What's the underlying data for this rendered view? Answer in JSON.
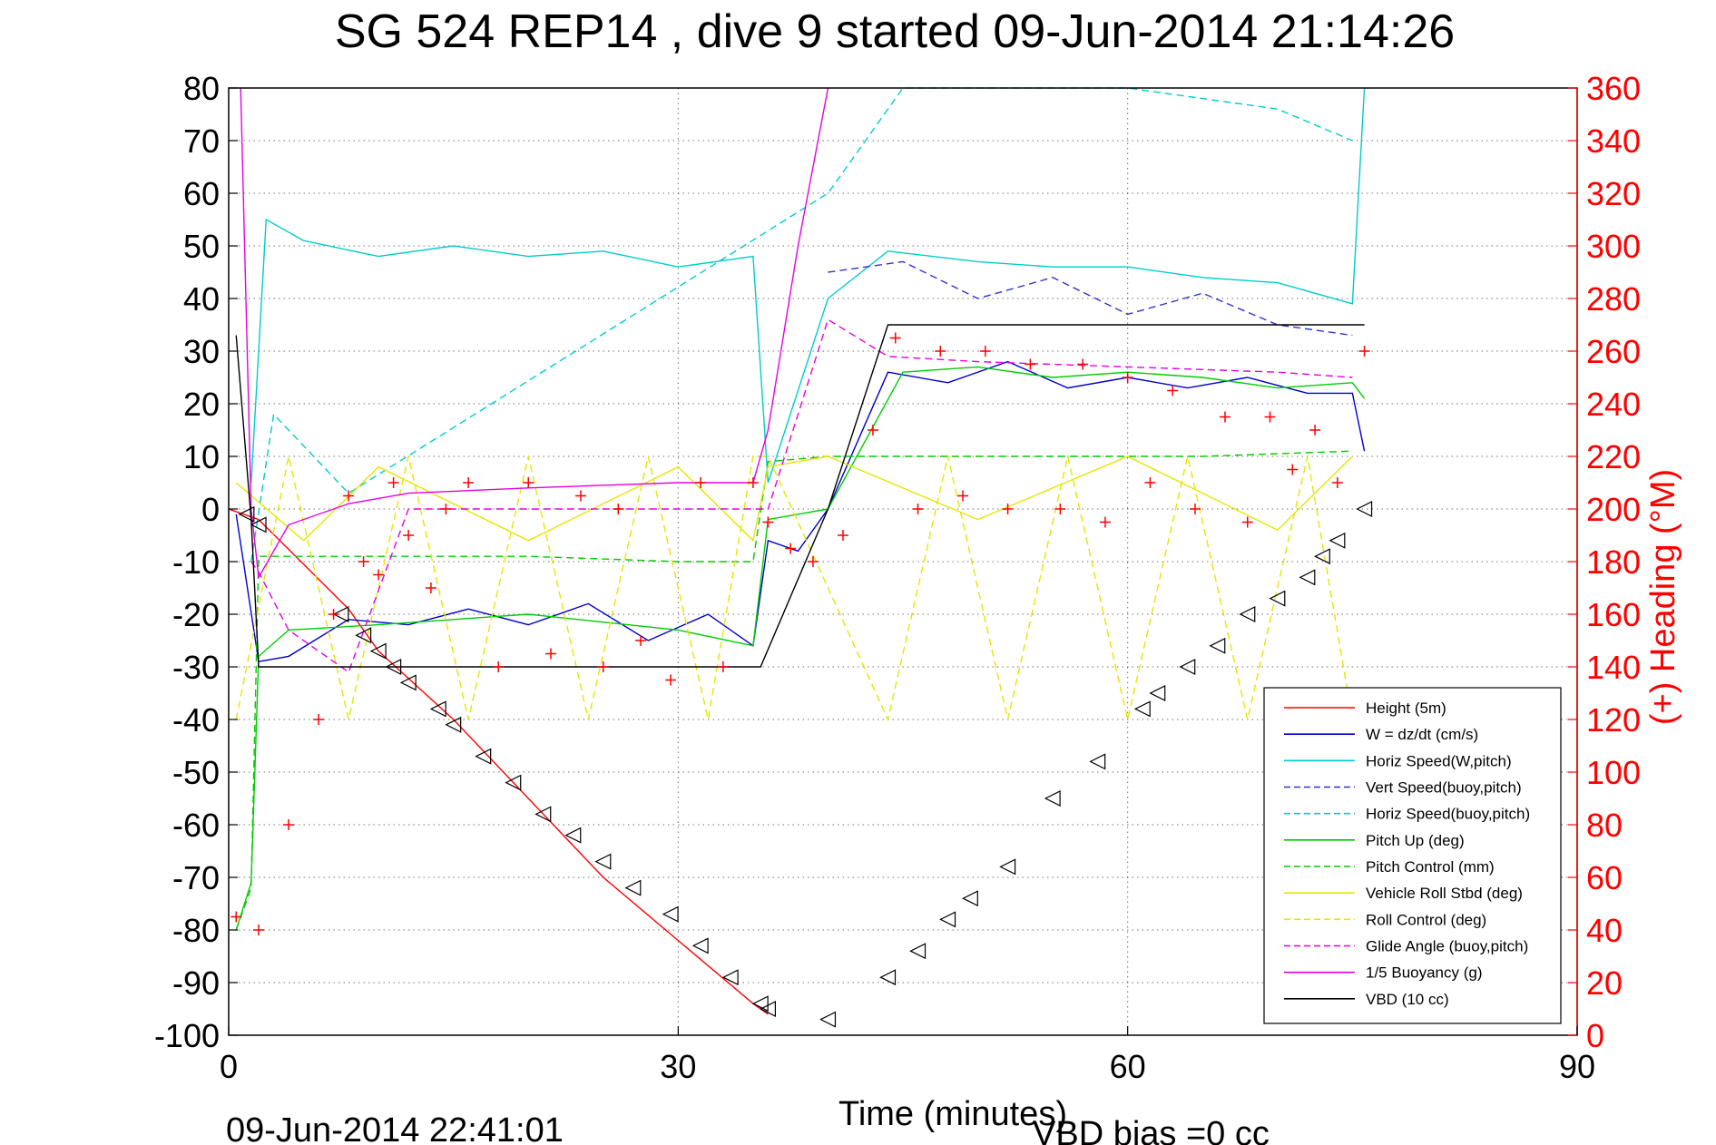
{
  "chart_data": {
    "type": "line",
    "title": "SG 524   REP14  , dive 9 started 09-Jun-2014 21:14:26",
    "xlabel": "Time (minutes)",
    "ylabel_right": "(+) Heading (°M)",
    "xlim": [
      0,
      90
    ],
    "ylim": [
      -100,
      80
    ],
    "ylim_right": [
      0,
      360
    ],
    "x_ticks": [
      "0",
      "30",
      "60",
      "90"
    ],
    "y_ticks": [
      "80",
      "70",
      "60",
      "50",
      "40",
      "30",
      "20",
      "10",
      "0",
      "-10",
      "-20",
      "-30",
      "-40",
      "-50",
      "-60",
      "-70",
      "-80",
      "-90",
      "-100"
    ],
    "y_ticks_right": [
      "360",
      "340",
      "320",
      "300",
      "280",
      "260",
      "240",
      "220",
      "200",
      "180",
      "160",
      "140",
      "120",
      "100",
      "80",
      "60",
      "40",
      "20",
      "0"
    ],
    "grid": true,
    "legend_position": "bottom-right",
    "footer_left": "09-Jun-2014 22:41:01",
    "footer_right": "VBD bias =0 cc",
    "series": [
      {
        "name": "Height (5m)",
        "color": "#ff0000",
        "style": "solid",
        "x": [
          0,
          2,
          8,
          10,
          15,
          20,
          25,
          30,
          35,
          36
        ],
        "y": [
          0,
          -2,
          -19,
          -27,
          -40,
          -55,
          -70,
          -82,
          -94,
          -96
        ]
      },
      {
        "name": "W = dz/dt (cm/s)",
        "color": "#0000cc",
        "style": "solid",
        "x": [
          0.5,
          2,
          4,
          8,
          12,
          16,
          20,
          24,
          28,
          32,
          35,
          36,
          38,
          40,
          44,
          48,
          52,
          56,
          60,
          64,
          68,
          72,
          75,
          75.8
        ],
        "y": [
          -1,
          -29,
          -28,
          -21,
          -22,
          -19,
          -22,
          -18,
          -25,
          -20,
          -26,
          -6,
          -8,
          0,
          26,
          24,
          28,
          23,
          25,
          23,
          25,
          22,
          22,
          11
        ]
      },
      {
        "name": "Horiz Speed(W,pitch)",
        "color": "#00cccc",
        "style": "solid",
        "x": [
          1.5,
          2.5,
          5,
          10,
          15,
          20,
          25,
          30,
          35,
          36,
          40,
          44,
          50,
          55,
          60,
          65,
          70,
          75,
          75.8
        ],
        "y": [
          5,
          55,
          51,
          48,
          50,
          48,
          49,
          46,
          48,
          5,
          40,
          49,
          47,
          46,
          46,
          44,
          43,
          39,
          80
        ]
      },
      {
        "name": "Vert Speed(buoy,pitch)",
        "color": "#3333cc",
        "style": "dashed",
        "x": [
          40,
          45,
          50,
          55,
          60,
          65,
          70,
          75
        ],
        "y": [
          45,
          47,
          40,
          44,
          37,
          41,
          35,
          33
        ]
      },
      {
        "name": "Horiz Speed(buoy,pitch)",
        "color": "#00cccc",
        "style": "dashed",
        "x": [
          1.5,
          3,
          8,
          40,
          45,
          50,
          60,
          70,
          75
        ],
        "y": [
          -10,
          18,
          3,
          60,
          80,
          80,
          80,
          76,
          70
        ]
      },
      {
        "name": "Pitch Up (deg)",
        "color": "#00cc00",
        "style": "solid",
        "x": [
          0.5,
          1.5,
          2,
          4,
          10,
          20,
          30,
          35,
          36,
          40,
          45,
          50,
          55,
          60,
          65,
          70,
          75,
          75.8
        ],
        "y": [
          -80,
          -71,
          -28,
          -23,
          -22,
          -20,
          -23,
          -26,
          -2,
          0,
          26,
          27,
          25,
          26,
          25,
          23,
          24,
          21
        ]
      },
      {
        "name": "Pitch Control (mm)",
        "color": "#00cc00",
        "style": "dashed",
        "x": [
          0.5,
          1.5,
          2,
          10,
          20,
          30,
          35,
          36,
          40,
          45,
          55,
          65,
          75
        ],
        "y": [
          -80,
          -72,
          -9,
          -9,
          -9,
          -10,
          -10,
          9,
          10,
          10,
          10,
          10,
          11
        ]
      },
      {
        "name": "Vehicle Roll Stbd (deg)",
        "color": "#e6e600",
        "style": "solid",
        "x": [
          0.5,
          5,
          10,
          20,
          30,
          35,
          36,
          40,
          50,
          60,
          70,
          75
        ],
        "y": [
          5,
          -6,
          8,
          -6,
          8,
          -6,
          8,
          10,
          -2,
          10,
          -4,
          10
        ]
      },
      {
        "name": "Roll Control (deg)",
        "color": "#e6e600",
        "style": "dashed",
        "x": [
          0.5,
          4,
          8,
          12,
          16,
          20,
          24,
          28,
          32,
          35,
          36,
          44,
          48,
          52,
          56,
          60,
          64,
          68,
          72,
          75
        ],
        "y": [
          -40,
          10,
          -40,
          10,
          -40,
          10,
          -40,
          10,
          -40,
          10,
          10,
          -40,
          10,
          -40,
          10,
          -40,
          10,
          -40,
          10,
          -40
        ]
      },
      {
        "name": "Glide Angle (buoy,pitch)",
        "color": "#e600e6",
        "style": "dashed",
        "x": [
          1.5,
          2,
          4,
          8,
          12,
          20,
          30,
          36,
          40,
          44,
          50,
          60,
          70,
          75
        ],
        "y": [
          -10,
          -12,
          -23,
          -31,
          0,
          0,
          0,
          0,
          36,
          29,
          28,
          27,
          26,
          25
        ]
      },
      {
        "name": "1/5 Buoyancy (g)",
        "color": "#e600e6",
        "style": "solid",
        "x": [
          0.8,
          1.5,
          2,
          4,
          8,
          12,
          20,
          30,
          35,
          36,
          38,
          40
        ],
        "y": [
          80,
          0,
          -13,
          -3,
          1,
          3,
          4,
          5,
          5,
          15,
          50,
          80
        ]
      },
      {
        "name": "VBD (10 cc)",
        "color": "#000000",
        "style": "solid",
        "x": [
          0.5,
          1.5,
          2,
          10,
          20,
          30,
          35.5,
          40,
          44,
          50,
          60,
          70,
          75.8
        ],
        "y": [
          33,
          -2,
          -30,
          -30,
          -30,
          -30,
          -30,
          0,
          35,
          35,
          35,
          35,
          35
        ]
      },
      {
        "name": "Height (5m) markers",
        "color": "#000000",
        "style": "markers",
        "x": [
          1.2,
          2,
          7.5,
          9,
          10,
          11,
          12,
          14,
          15,
          17,
          19,
          21,
          23,
          25,
          27,
          29.5,
          31.5,
          33.5,
          35.5,
          36,
          40,
          44,
          46,
          48,
          49.5,
          52,
          55,
          58,
          61,
          62,
          64,
          66,
          68,
          70,
          72,
          73,
          74,
          75.8
        ],
        "y": [
          -1,
          -3,
          -20,
          -24,
          -27,
          -30,
          -33,
          -38,
          -41,
          -47,
          -52,
          -58,
          -62,
          -67,
          -72,
          -77,
          -83,
          -89,
          -94,
          -95,
          -97,
          -89,
          -84,
          -78,
          -74,
          -68,
          -55,
          -48,
          -38,
          -35,
          -30,
          -26,
          -20,
          -17,
          -13,
          -9,
          -6,
          0
        ]
      },
      {
        "name": "(+) Heading (°M)",
        "color": "#ff0000",
        "style": "plus",
        "axis": "right",
        "x": [
          0.5,
          2,
          4,
          6,
          7,
          8,
          9,
          10,
          11,
          12,
          13.5,
          14.5,
          16,
          18,
          20,
          21.5,
          23.5,
          25,
          26,
          27.5,
          29.5,
          31.5,
          33,
          35,
          36,
          37.5,
          39,
          41,
          43,
          44.5,
          46,
          47.5,
          49,
          50.5,
          52,
          53.5,
          55.5,
          57,
          58.5,
          60,
          61.5,
          63,
          64.5,
          66.5,
          68,
          69.5,
          71,
          72.5,
          74,
          75.8
        ],
        "y": [
          45,
          40,
          80,
          120,
          160,
          205,
          180,
          175,
          210,
          190,
          170,
          200,
          210,
          140,
          210,
          145,
          205,
          140,
          200,
          150,
          135,
          210,
          140,
          210,
          195,
          185,
          180,
          190,
          230,
          265,
          200,
          260,
          205,
          260,
          200,
          255,
          200,
          255,
          195,
          250,
          210,
          245,
          200,
          235,
          195,
          235,
          215,
          230,
          210,
          260
        ]
      }
    ]
  }
}
